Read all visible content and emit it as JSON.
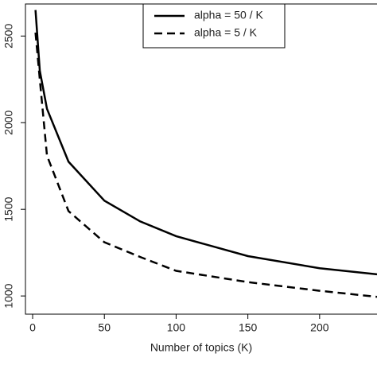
{
  "chart_data": {
    "type": "line",
    "xlabel": "Number of topics (K)",
    "x": [
      2,
      5,
      10,
      25,
      50,
      75,
      100,
      150,
      200,
      240
    ],
    "series": [
      {
        "name": "alpha = 50 / K",
        "color": "#000000",
        "linestyle": "solid",
        "values": [
          2650,
          2300,
          2080,
          1775,
          1550,
          1430,
          1345,
          1230,
          1160,
          1125
        ]
      },
      {
        "name": "alpha = 5 / K",
        "color": "#000000",
        "linestyle": "dashed",
        "values": [
          2520,
          2250,
          1810,
          1490,
          1310,
          1225,
          1145,
          1080,
          1030,
          995
        ]
      }
    ],
    "xlim": [
      -5,
      240
    ],
    "ylim": [
      895,
      2685
    ],
    "xticks": [
      0,
      50,
      100,
      150,
      200
    ],
    "yticks": [
      1000,
      1500,
      2000,
      2500
    ],
    "legend": "top"
  }
}
